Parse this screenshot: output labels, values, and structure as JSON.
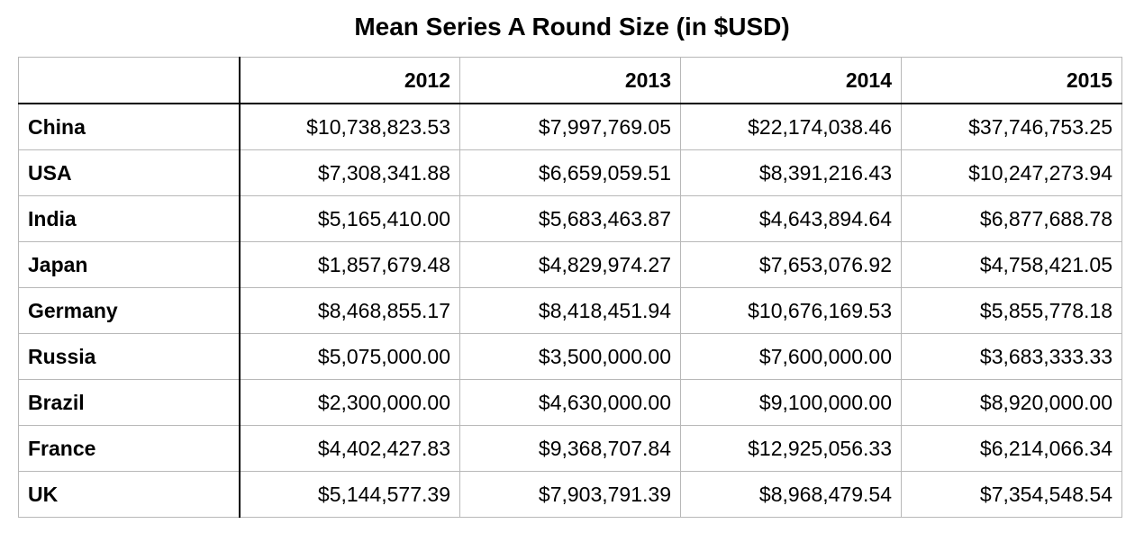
{
  "chart_data": {
    "type": "table",
    "title": "Mean Series A Round Size (in $USD)",
    "columns": [
      "2012",
      "2013",
      "2014",
      "2015"
    ],
    "rows": [
      {
        "label": "China",
        "values": [
          "$10,738,823.53",
          "$7,997,769.05",
          "$22,174,038.46",
          "$37,746,753.25"
        ]
      },
      {
        "label": "USA",
        "values": [
          "$7,308,341.88",
          "$6,659,059.51",
          "$8,391,216.43",
          "$10,247,273.94"
        ]
      },
      {
        "label": "India",
        "values": [
          "$5,165,410.00",
          "$5,683,463.87",
          "$4,643,894.64",
          "$6,877,688.78"
        ]
      },
      {
        "label": "Japan",
        "values": [
          "$1,857,679.48",
          "$4,829,974.27",
          "$7,653,076.92",
          "$4,758,421.05"
        ]
      },
      {
        "label": "Germany",
        "values": [
          "$8,468,855.17",
          "$8,418,451.94",
          "$10,676,169.53",
          "$5,855,778.18"
        ]
      },
      {
        "label": "Russia",
        "values": [
          "$5,075,000.00",
          "$3,500,000.00",
          "$7,600,000.00",
          "$3,683,333.33"
        ]
      },
      {
        "label": "Brazil",
        "values": [
          "$2,300,000.00",
          "$4,630,000.00",
          "$9,100,000.00",
          "$8,920,000.00"
        ]
      },
      {
        "label": "France",
        "values": [
          "$4,402,427.83",
          "$9,368,707.84",
          "$12,925,056.33",
          "$6,214,066.34"
        ]
      },
      {
        "label": "UK",
        "values": [
          "$5,144,577.39",
          "$7,903,791.39",
          "$8,968,479.54",
          "$7,354,548.54"
        ]
      }
    ]
  }
}
